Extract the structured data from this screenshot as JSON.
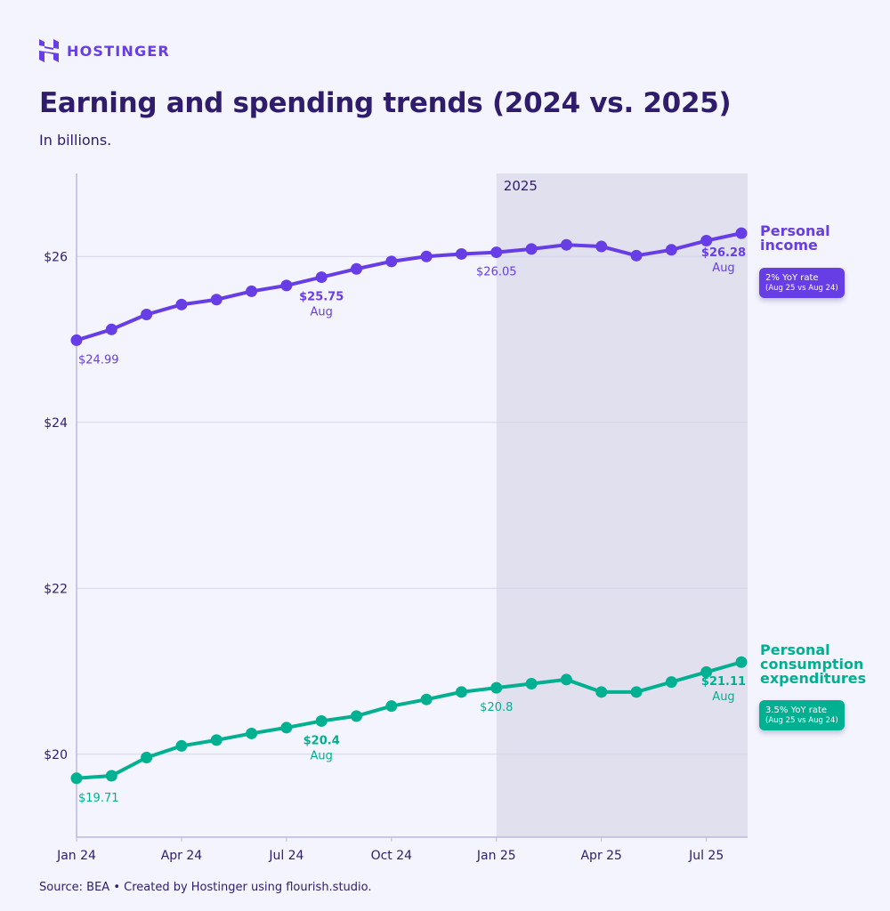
{
  "brand": {
    "name": "HOSTINGER",
    "color": "#673DE6"
  },
  "title": "Earning and spending trends (2024 vs. 2025)",
  "subtitle": "In billions.",
  "source": "Source: BEA • Created by Hostinger using flourish.studio.",
  "chart_data": {
    "type": "line",
    "x": [
      "Jan 24",
      "Feb 24",
      "Mar 24",
      "Apr 24",
      "May 24",
      "Jun 24",
      "Jul 24",
      "Aug 24",
      "Sep 24",
      "Oct 24",
      "Nov 24",
      "Dec 24",
      "Jan 25",
      "Feb 25",
      "Mar 25",
      "Apr 25",
      "May 25",
      "Jun 25",
      "Jul 25",
      "Aug 25"
    ],
    "x_tick_labels": [
      {
        "index": 0,
        "label": "Jan 24"
      },
      {
        "index": 3,
        "label": "Apr 24"
      },
      {
        "index": 6,
        "label": "Jul 24"
      },
      {
        "index": 9,
        "label": "Oct 24"
      },
      {
        "index": 12,
        "label": "Jan 25"
      },
      {
        "index": 15,
        "label": "Apr 25"
      },
      {
        "index": 18,
        "label": "Jul 25"
      }
    ],
    "y_ticks": [
      {
        "value": 20,
        "label": "$20"
      },
      {
        "value": 22,
        "label": "$22"
      },
      {
        "value": 24,
        "label": "$24"
      },
      {
        "value": 26,
        "label": "$26"
      }
    ],
    "ylim": [
      19,
      27
    ],
    "grid": true,
    "highlight_region": {
      "from_index": 12,
      "to_index": 19,
      "label": "2025",
      "color": "#E1E0EE"
    },
    "series": [
      {
        "name": "Personal income",
        "color": "#673DE6",
        "values": [
          24.99,
          25.12,
          25.3,
          25.42,
          25.48,
          25.58,
          25.65,
          25.75,
          25.85,
          25.94,
          26.0,
          26.03,
          26.05,
          26.09,
          26.14,
          26.12,
          26.01,
          26.08,
          26.19,
          26.28
        ],
        "data_labels": [
          {
            "index": 0,
            "value": "$24.99",
            "sub": "",
            "bold": false
          },
          {
            "index": 7,
            "value": "$25.75",
            "sub": "Aug",
            "bold": true
          },
          {
            "index": 12,
            "value": "$26.05",
            "sub": "",
            "bold": false
          },
          {
            "index": 19,
            "value": "$26.28",
            "sub": "Aug",
            "bold": true
          }
        ],
        "badge": {
          "line1": "2% YoY rate",
          "line2": "(Aug 25 vs Aug 24)"
        }
      },
      {
        "name": "Personal consumption expenditures",
        "color": "#00B090",
        "values": [
          19.71,
          19.74,
          19.96,
          20.1,
          20.17,
          20.25,
          20.32,
          20.4,
          20.46,
          20.58,
          20.66,
          20.75,
          20.8,
          20.85,
          20.9,
          20.75,
          20.75,
          20.87,
          20.99,
          21.11
        ],
        "data_labels": [
          {
            "index": 0,
            "value": "$19.71",
            "sub": "",
            "bold": false
          },
          {
            "index": 7,
            "value": "$20.4",
            "sub": "Aug",
            "bold": true
          },
          {
            "index": 12,
            "value": "$20.8",
            "sub": "",
            "bold": false
          },
          {
            "index": 19,
            "value": "$21.11",
            "sub": "Aug",
            "bold": true
          }
        ],
        "badge": {
          "line1": "3.5% YoY rate",
          "line2": "(Aug 25 vs Aug 24)"
        }
      }
    ]
  }
}
